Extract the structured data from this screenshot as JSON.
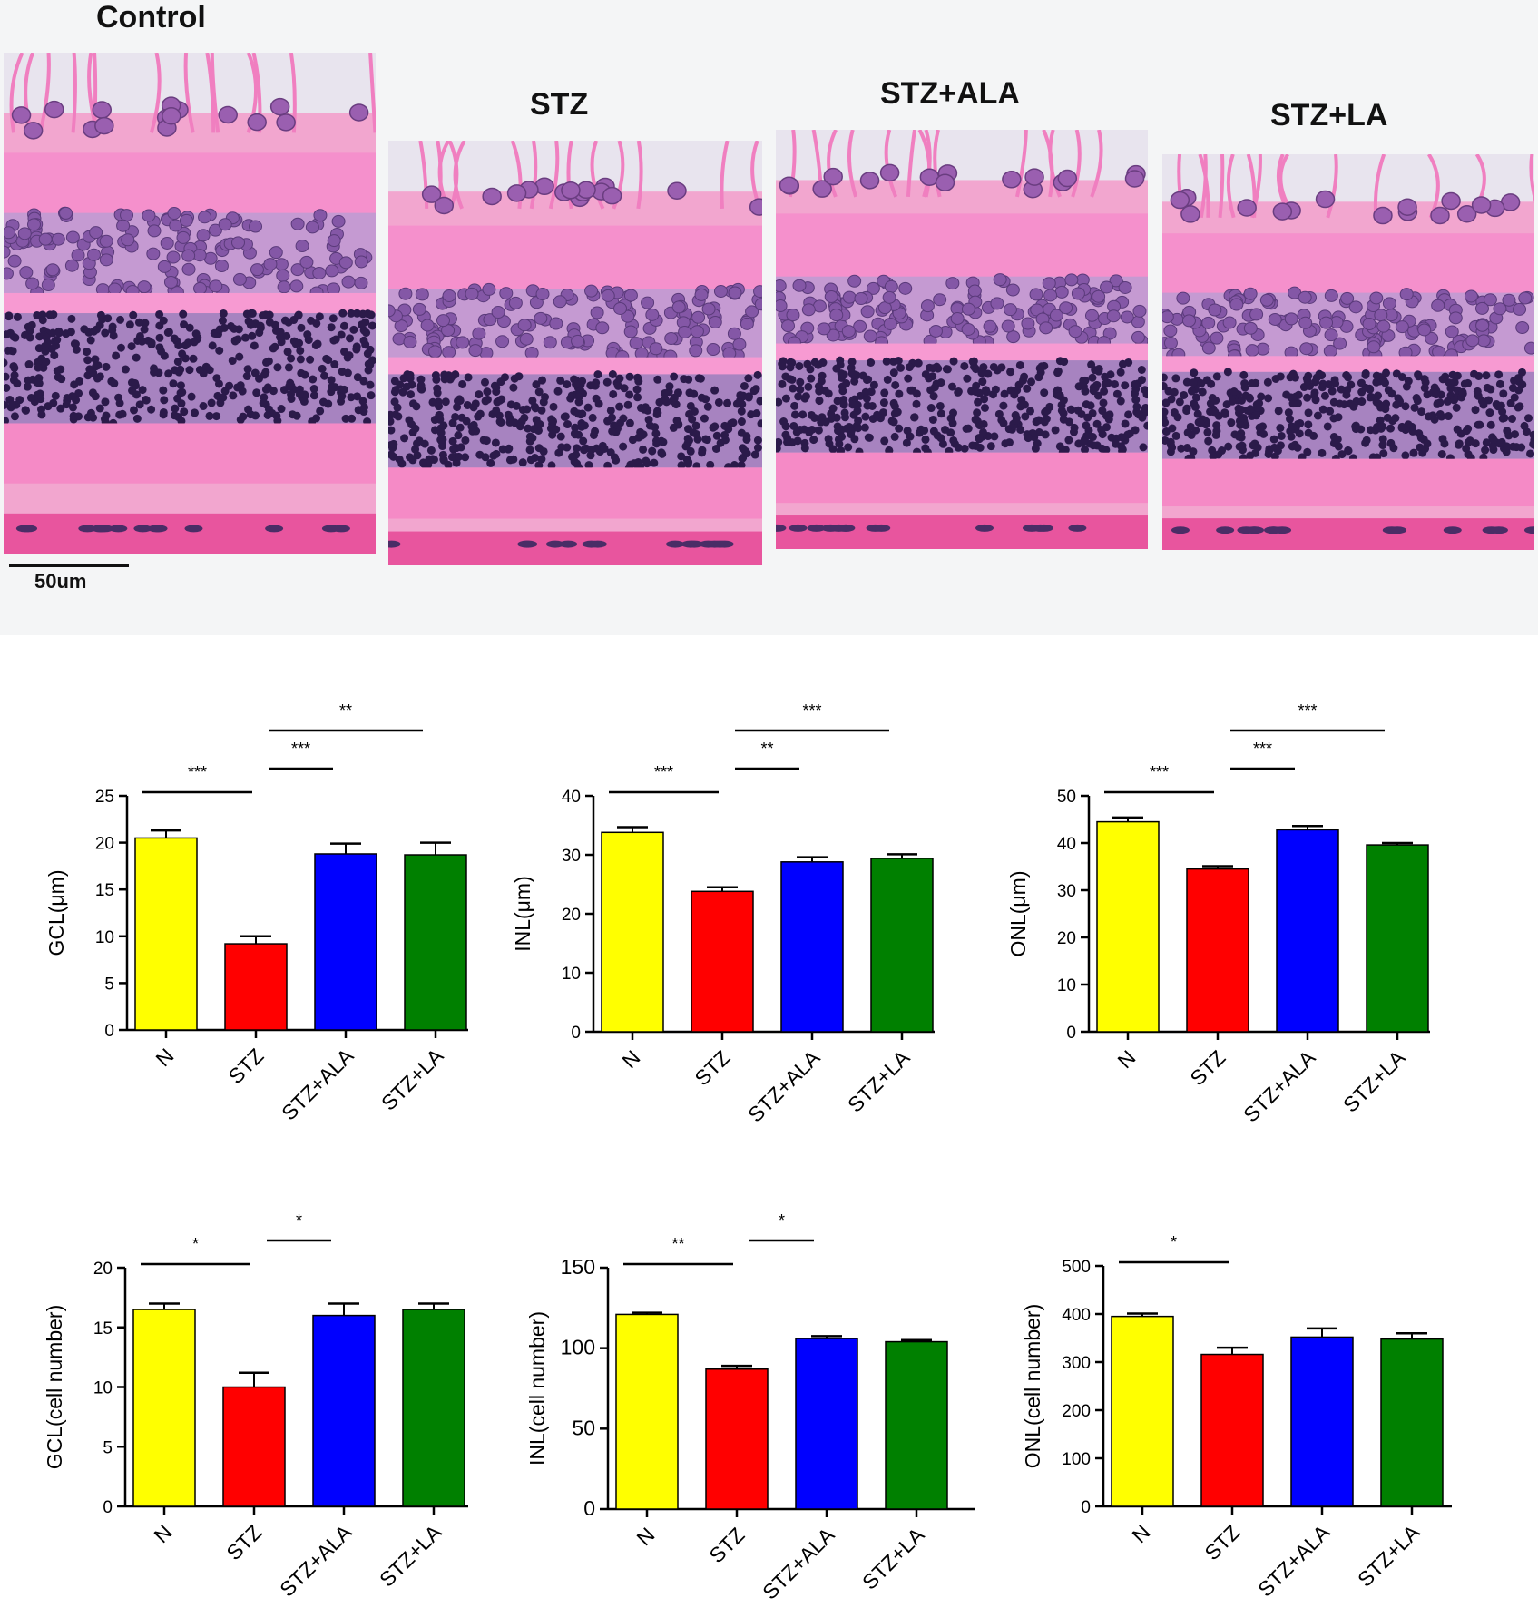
{
  "micrographs": {
    "panels": [
      {
        "label": "Control"
      },
      {
        "label": "STZ"
      },
      {
        "label": "STZ+ALA"
      },
      {
        "label": "STZ+LA"
      }
    ],
    "scale_label": "50um"
  },
  "colors": {
    "N": "#ffff00",
    "STZ": "#ff0000",
    "STZ+ALA": "#0000ff",
    "STZ+LA": "#008000"
  },
  "chart_data": [
    {
      "type": "bar",
      "ylabel": "GCL(μm)",
      "categories": [
        "N",
        "STZ",
        "STZ+ALA",
        "STZ+LA"
      ],
      "values": [
        20.5,
        9.2,
        18.8,
        18.7
      ],
      "errors": [
        0.8,
        0.8,
        1.1,
        1.3
      ],
      "ylim": [
        0,
        25
      ],
      "yticks": [
        0,
        5,
        10,
        15,
        20,
        25
      ],
      "significance": [
        {
          "from": 0,
          "to": 1,
          "label": "***"
        },
        {
          "from": 1,
          "to": 2,
          "label": "***"
        },
        {
          "from": 1,
          "to": 3,
          "label": "**"
        }
      ]
    },
    {
      "type": "bar",
      "ylabel": "INL(μm)",
      "categories": [
        "N",
        "STZ",
        "STZ+ALA",
        "STZ+LA"
      ],
      "values": [
        33.8,
        23.8,
        28.8,
        29.4
      ],
      "errors": [
        0.9,
        0.7,
        0.8,
        0.7
      ],
      "ylim": [
        0,
        40
      ],
      "yticks": [
        0,
        10,
        20,
        30,
        40
      ],
      "significance": [
        {
          "from": 0,
          "to": 1,
          "label": "***"
        },
        {
          "from": 1,
          "to": 2,
          "label": "**"
        },
        {
          "from": 1,
          "to": 3,
          "label": "***"
        }
      ]
    },
    {
      "type": "bar",
      "ylabel": "ONL(μm)",
      "categories": [
        "N",
        "STZ",
        "STZ+ALA",
        "STZ+LA"
      ],
      "values": [
        44.5,
        34.5,
        42.8,
        39.6
      ],
      "errors": [
        0.9,
        0.6,
        0.8,
        0.4
      ],
      "ylim": [
        0,
        50
      ],
      "yticks": [
        0,
        10,
        20,
        30,
        40,
        50
      ],
      "significance": [
        {
          "from": 0,
          "to": 1,
          "label": "***"
        },
        {
          "from": 1,
          "to": 2,
          "label": "***"
        },
        {
          "from": 1,
          "to": 3,
          "label": "***"
        }
      ]
    },
    {
      "type": "bar",
      "ylabel": "GCL(cell number)",
      "categories": [
        "N",
        "STZ",
        "STZ+ALA",
        "STZ+LA"
      ],
      "values": [
        16.5,
        10.0,
        16.0,
        16.5
      ],
      "errors": [
        0.5,
        1.2,
        1.0,
        0.5
      ],
      "ylim": [
        0,
        20
      ],
      "yticks": [
        0,
        5,
        10,
        15,
        20
      ],
      "significance": [
        {
          "from": 0,
          "to": 1,
          "label": "*"
        },
        {
          "from": 1,
          "to": 2,
          "label": "*"
        }
      ]
    },
    {
      "type": "bar",
      "ylabel": "INL(cell number)",
      "categories": [
        "N",
        "STZ",
        "STZ+ALA",
        "STZ+LA"
      ],
      "values": [
        121,
        87,
        106,
        104
      ],
      "errors": [
        1,
        2,
        1.5,
        1
      ],
      "ylim": [
        0,
        150
      ],
      "yticks": [
        0,
        50,
        100,
        150
      ],
      "significance": [
        {
          "from": 0,
          "to": 1,
          "label": "**"
        },
        {
          "from": 1,
          "to": 2,
          "label": "*"
        }
      ]
    },
    {
      "type": "bar",
      "ylabel": "ONL(cell number)",
      "categories": [
        "N",
        "STZ",
        "STZ+ALA",
        "STZ+LA"
      ],
      "values": [
        395,
        316,
        352,
        348
      ],
      "errors": [
        6,
        14,
        18,
        12
      ],
      "ylim": [
        0,
        500
      ],
      "yticks": [
        0,
        100,
        200,
        300,
        400,
        500
      ],
      "significance": [
        {
          "from": 0,
          "to": 1,
          "label": "*"
        }
      ]
    }
  ]
}
